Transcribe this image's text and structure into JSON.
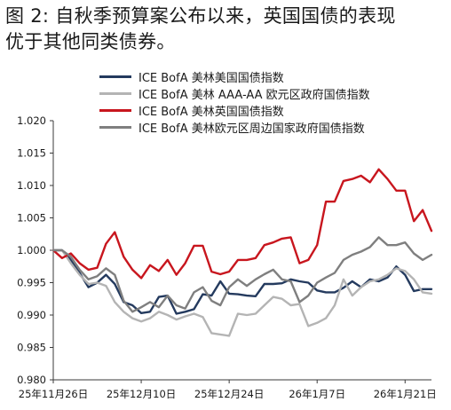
{
  "title_line1": "图 2:  自秋季预算案公布以来，英国国债的表现",
  "title_line2": "优于其他同类债券。",
  "chart_data": {
    "type": "line",
    "ylim": [
      0.98,
      1.02
    ],
    "yticks": [
      "1.020",
      "1.015",
      "1.010",
      "1.005",
      "1.000",
      "0.995",
      "0.990",
      "0.985",
      "0.980"
    ],
    "xticks": [
      {
        "label": "25年11月26日",
        "index": 0
      },
      {
        "label": "25年12月10日",
        "index": 10
      },
      {
        "label": "25年12月24日",
        "index": 20
      },
      {
        "label": "26年1月7日",
        "index": 30
      },
      {
        "label": "26年1月21日",
        "index": 40
      }
    ],
    "x_count": 44,
    "grid": false,
    "legend_position": "top",
    "series": [
      {
        "name": "ICE BofA 美林美国国债指数",
        "color": "#243a5e",
        "values": [
          1.0,
          1.0,
          0.9985,
          0.9965,
          0.9943,
          0.995,
          0.9962,
          0.9948,
          0.992,
          0.9915,
          0.9903,
          0.9905,
          0.9928,
          0.993,
          0.9902,
          0.9905,
          0.9909,
          0.9932,
          0.993,
          0.9952,
          0.9933,
          0.9932,
          0.993,
          0.9929,
          0.9948,
          0.9948,
          0.9949,
          0.9955,
          0.9952,
          0.995,
          0.9938,
          0.9935,
          0.9935,
          0.9942,
          0.9952,
          0.9943,
          0.9955,
          0.9952,
          0.9958,
          0.9975,
          0.9962,
          0.9937,
          0.994,
          0.994
        ]
      },
      {
        "name": "ICE BofA 美林 AAA-AA 欧元区政府国债指数",
        "color": "#b4b4b4",
        "values": [
          1.0,
          1.0,
          0.998,
          0.9962,
          0.9948,
          0.995,
          0.9945,
          0.992,
          0.9905,
          0.9895,
          0.989,
          0.9895,
          0.9905,
          0.99,
          0.9893,
          0.9898,
          0.9902,
          0.9897,
          0.9872,
          0.987,
          0.9868,
          0.9902,
          0.99,
          0.9902,
          0.9915,
          0.9928,
          0.9925,
          0.9915,
          0.9917,
          0.9883,
          0.9888,
          0.9895,
          0.9915,
          0.9955,
          0.993,
          0.9943,
          0.9952,
          0.9955,
          0.9962,
          0.9972,
          0.9968,
          0.9955,
          0.9935,
          0.9933
        ]
      },
      {
        "name": "ICE BofA 美林英国国债指数",
        "color": "#c8161e",
        "values": [
          1.0,
          0.9988,
          0.9995,
          0.998,
          0.997,
          0.9973,
          1.001,
          1.0028,
          0.999,
          0.997,
          0.9957,
          0.9977,
          0.9968,
          0.9985,
          0.9962,
          0.998,
          1.0007,
          1.0007,
          0.9967,
          0.9963,
          0.9967,
          0.9985,
          0.9985,
          0.9988,
          1.0008,
          1.0012,
          1.0018,
          1.002,
          0.998,
          0.9985,
          1.0008,
          1.0075,
          1.0075,
          1.0107,
          1.011,
          1.0115,
          1.0105,
          1.0125,
          1.011,
          1.0092,
          1.0092,
          1.0045,
          1.0062,
          1.003
        ]
      },
      {
        "name": "ICE BofA 美林欧元区周边国家政府国债指数",
        "color": "#7f7f7f",
        "values": [
          1.0,
          1.0,
          0.999,
          0.997,
          0.9955,
          0.996,
          0.9972,
          0.9962,
          0.9922,
          0.9905,
          0.9912,
          0.992,
          0.9912,
          0.993,
          0.9915,
          0.991,
          0.9935,
          0.9943,
          0.9922,
          0.9915,
          0.9943,
          0.9955,
          0.9945,
          0.9955,
          0.9963,
          0.997,
          0.9955,
          0.9952,
          0.992,
          0.993,
          0.995,
          0.9958,
          0.9965,
          0.9985,
          0.9993,
          0.9998,
          1.0005,
          1.002,
          1.0008,
          1.0008,
          1.0012,
          0.9995,
          0.9985,
          0.9993
        ]
      }
    ]
  }
}
